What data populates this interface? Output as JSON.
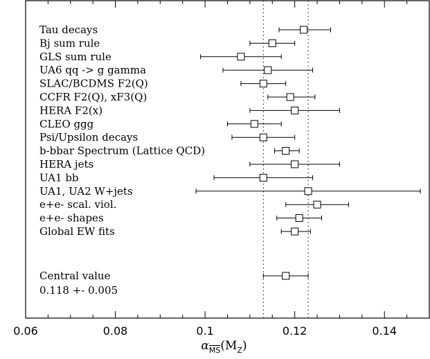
{
  "chart_data": {
    "type": "scatter",
    "subtype": "horizontal error bars",
    "title": "",
    "xlabel": {
      "symbol": "α",
      "subscript": "MS",
      "subscript_overline": true,
      "argument": "(M",
      "argument_sub": "Z",
      "argument_close": ")"
    },
    "ylabel": "",
    "xlim": [
      0.06,
      0.15
    ],
    "xticks": [
      0.06,
      0.08,
      0.1,
      0.12,
      0.14
    ],
    "xtick_labels": [
      "0.06",
      "0.08",
      "0.1",
      "0.12",
      "0.14"
    ],
    "reference_lines": [
      0.113,
      0.123
    ],
    "reference_line_style": "dotted",
    "grid": false,
    "legend": "none",
    "marker": "open-square",
    "color": "#000000",
    "points": [
      {
        "label": "Tau decays",
        "value": 0.122,
        "low": 0.1165,
        "high": 0.128
      },
      {
        "label": "Bj sum rule",
        "value": 0.115,
        "low": 0.11,
        "high": 0.12
      },
      {
        "label": "GLS sum rule",
        "value": 0.108,
        "low": 0.099,
        "high": 0.117
      },
      {
        "label": "UA6 qq -> g gamma",
        "value": 0.114,
        "low": 0.104,
        "high": 0.124
      },
      {
        "label": "SLAC/BCDMS F2(Q)",
        "value": 0.113,
        "low": 0.108,
        "high": 0.118
      },
      {
        "label": "CCFR F2(Q), xF3(Q)",
        "value": 0.119,
        "low": 0.114,
        "high": 0.1245
      },
      {
        "label": "HERA F2(x)",
        "value": 0.12,
        "low": 0.11,
        "high": 0.13
      },
      {
        "label": "CLEO ggg",
        "value": 0.111,
        "low": 0.105,
        "high": 0.117
      },
      {
        "label": "Psi/Upsilon decays",
        "value": 0.113,
        "low": 0.106,
        "high": 0.12
      },
      {
        "label": "b-bbar Spectrum (Lattice QCD)",
        "value": 0.118,
        "low": 0.1155,
        "high": 0.121
      },
      {
        "label": "HERA jets",
        "value": 0.12,
        "low": 0.11,
        "high": 0.13
      },
      {
        "label": "UA1 bb",
        "value": 0.113,
        "low": 0.102,
        "high": 0.124
      },
      {
        "label": "UA1, UA2 W+jets",
        "value": 0.123,
        "low": 0.098,
        "high": 0.148
      },
      {
        "label": "e+e- scal. viol.",
        "value": 0.125,
        "low": 0.118,
        "high": 0.132
      },
      {
        "label": "e+e- shapes",
        "value": 0.121,
        "low": 0.116,
        "high": 0.126
      },
      {
        "label": "Global EW fits",
        "value": 0.12,
        "low": 0.117,
        "high": 0.1235
      }
    ],
    "central": {
      "line1": "Central value",
      "line2": "0.118 +- 0.005",
      "value": 0.118,
      "low": 0.113,
      "high": 0.123
    }
  }
}
